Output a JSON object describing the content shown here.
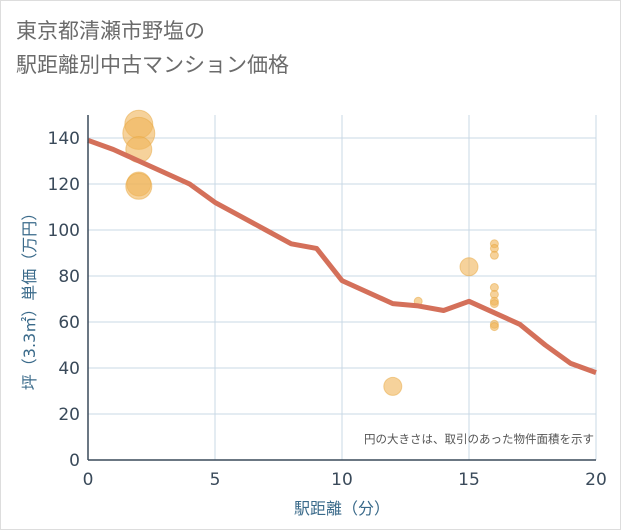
{
  "title": {
    "line1": "東京都清瀬市野塩の",
    "line2": "駅距離別中古マンション価格"
  },
  "colors": {
    "line": "#d4705a",
    "bubble_fill": "#f0b458",
    "bubble_stroke": "#e8a840",
    "grid": "#c9d8e6",
    "axis": "#3a4a5a"
  },
  "chart_data": {
    "type": "scatter",
    "title": "東京都清瀬市野塩の駅距離別中古マンション価格",
    "xlabel": "駅距離（分）",
    "ylabel": "坪（3.3㎡）単価（万円）",
    "xlim": [
      0,
      20
    ],
    "ylim": [
      0,
      150
    ],
    "xticks": [
      0,
      5,
      10,
      15,
      20
    ],
    "yticks": [
      0,
      20,
      40,
      60,
      80,
      100,
      120,
      140
    ],
    "grid": true,
    "note": "円の大きさは、取引のあった物件面積を示す",
    "series": [
      {
        "name": "average",
        "kind": "line",
        "x": [
          0,
          1,
          2,
          3,
          4,
          5,
          6,
          7,
          8,
          9,
          10,
          11,
          12,
          13,
          14,
          15,
          16,
          17,
          18,
          19,
          20
        ],
        "y": [
          139,
          135,
          130,
          125,
          120,
          112,
          106,
          100,
          94,
          92,
          78,
          73,
          68,
          67,
          65,
          69,
          64,
          59,
          50,
          42,
          38
        ]
      },
      {
        "name": "transactions",
        "kind": "bubble",
        "points": [
          {
            "x": 2,
            "y": 146,
            "size": 14
          },
          {
            "x": 2,
            "y": 142,
            "size": 16
          },
          {
            "x": 2,
            "y": 135,
            "size": 13
          },
          {
            "x": 2,
            "y": 120,
            "size": 12
          },
          {
            "x": 2,
            "y": 119,
            "size": 13
          },
          {
            "x": 12,
            "y": 32,
            "size": 9
          },
          {
            "x": 13,
            "y": 69,
            "size": 4
          },
          {
            "x": 15,
            "y": 84,
            "size": 9
          },
          {
            "x": 16,
            "y": 94,
            "size": 4
          },
          {
            "x": 16,
            "y": 92,
            "size": 4
          },
          {
            "x": 16,
            "y": 89,
            "size": 4
          },
          {
            "x": 16,
            "y": 75,
            "size": 4
          },
          {
            "x": 16,
            "y": 72,
            "size": 4
          },
          {
            "x": 16,
            "y": 69,
            "size": 4
          },
          {
            "x": 16,
            "y": 68,
            "size": 4
          },
          {
            "x": 16,
            "y": 59,
            "size": 4
          },
          {
            "x": 16,
            "y": 58,
            "size": 4
          }
        ]
      }
    ]
  }
}
